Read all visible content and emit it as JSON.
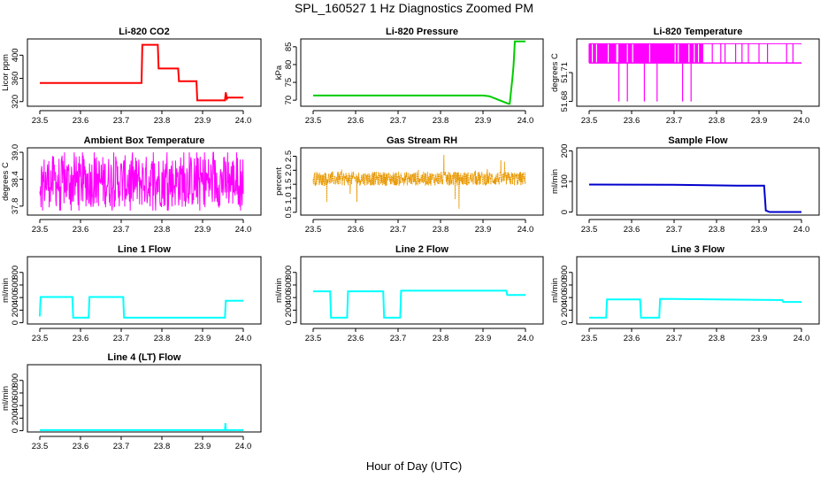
{
  "figure": {
    "title": "SPL_160527  1 Hz Diagnostics Zoomed PM",
    "xlabel": "Hour of Day (UTC)"
  },
  "chart_data": [
    {
      "id": "co2",
      "type": "line",
      "title": "Li-820 CO2",
      "ylabel": "Licor ppm",
      "color": "#ff0000",
      "xlim": [
        23.5,
        24.0
      ],
      "ylim": [
        312,
        428
      ],
      "xticks": [
        "23.5",
        "23.6",
        "23.7",
        "23.8",
        "23.9",
        "24.0"
      ],
      "xtick_values": [
        23.5,
        23.6,
        23.7,
        23.8,
        23.9,
        24.0
      ],
      "yticks": [
        "320",
        "360",
        "400"
      ],
      "ytick_values": [
        320,
        360,
        400
      ],
      "x": [
        23.5,
        23.75,
        23.752,
        23.79,
        23.792,
        23.84,
        23.842,
        23.885,
        23.887,
        23.955,
        23.957,
        23.96,
        23.962,
        24.0
      ],
      "y": [
        352,
        352,
        418,
        418,
        377,
        377,
        355,
        355,
        322,
        322,
        336,
        325,
        327,
        327
      ]
    },
    {
      "id": "pressure",
      "type": "line",
      "title": "Li-820 Pressure",
      "ylabel": "kPa",
      "color": "#00cc00",
      "xlim": [
        23.5,
        24.0
      ],
      "ylim": [
        68.3,
        87.2
      ],
      "xticks": [
        "23.5",
        "23.6",
        "23.7",
        "23.8",
        "23.9",
        "24.0"
      ],
      "xtick_values": [
        23.5,
        23.6,
        23.7,
        23.8,
        23.9,
        24.0
      ],
      "yticks": [
        "70",
        "75",
        "80",
        "85"
      ],
      "ytick_values": [
        70,
        75,
        80,
        85
      ],
      "x": [
        23.5,
        23.9,
        23.915,
        23.96,
        23.963,
        23.97,
        23.972,
        23.975,
        24.0
      ],
      "y": [
        71.3,
        71.3,
        71.1,
        69.0,
        69.0,
        77,
        80,
        86.5,
        86.5
      ]
    },
    {
      "id": "temperature",
      "type": "line",
      "title": "Li-820 Temperature",
      "ylabel": "degrees C",
      "color": "#ff00ff",
      "xlim": [
        23.5,
        24.0
      ],
      "ylim": [
        51.675,
        51.745
      ],
      "xticks": [
        "23.5",
        "23.6",
        "23.7",
        "23.8",
        "23.9",
        "24.0"
      ],
      "xtick_values": [
        23.5,
        23.6,
        23.7,
        23.8,
        23.9,
        24.0
      ],
      "yticks": [
        "51.68",
        "51.71"
      ],
      "ytick_values": [
        51.68,
        51.71
      ],
      "base": 51.72,
      "high": 51.74,
      "low": 51.68,
      "high_region_end": 23.77,
      "sparse_spikes": [
        23.79,
        23.81,
        23.82,
        23.845,
        23.86,
        23.875,
        23.9,
        23.92,
        23.965,
        23.98
      ],
      "dips": [
        23.57,
        23.59,
        23.63,
        23.66,
        23.72,
        23.74
      ]
    },
    {
      "id": "ambient",
      "type": "line",
      "title": "Ambient Box Temperature",
      "ylabel": "degrees C",
      "color": "#ff00ff",
      "xlim": [
        23.5,
        24.0
      ],
      "ylim": [
        37.6,
        39.1
      ],
      "xticks": [
        "23.5",
        "23.6",
        "23.7",
        "23.8",
        "23.9",
        "24.0"
      ],
      "xtick_values": [
        23.5,
        23.6,
        23.7,
        23.8,
        23.9,
        24.0
      ],
      "yticks": [
        "37.8",
        "38.4",
        "39.0"
      ],
      "ytick_values": [
        37.8,
        38.4,
        39.0
      ],
      "noise_min": 37.7,
      "noise_max": 39.0,
      "noise_center": 38.35
    },
    {
      "id": "rh",
      "type": "line",
      "title": "Gas Stream RH",
      "ylabel": "percent",
      "color": "#ffa500",
      "xlim": [
        23.5,
        24.0
      ],
      "ylim": [
        0.4,
        2.8
      ],
      "xticks": [
        "23.5",
        "23.6",
        "23.7",
        "23.8",
        "23.9",
        "24.0"
      ],
      "xtick_values": [
        23.5,
        23.6,
        23.7,
        23.8,
        23.9,
        24.0
      ],
      "yticks": [
        "0.5",
        "1.0",
        "1.5",
        "2.0",
        "2.5"
      ],
      "ytick_values": [
        0.5,
        1.0,
        1.5,
        2.0,
        2.5
      ],
      "noise_center": 1.7,
      "noise_band": [
        1.45,
        1.95
      ],
      "spike_min": 0.5,
      "spike_max": 2.6
    },
    {
      "id": "sample",
      "type": "line",
      "title": "Sample Flow",
      "ylabel": "ml/min",
      "color": "#0000cc",
      "xlim": [
        23.5,
        24.0
      ],
      "ylim": [
        -10,
        210
      ],
      "xticks": [
        "23.5",
        "23.6",
        "23.7",
        "23.8",
        "23.9",
        "24.0"
      ],
      "xtick_values": [
        23.5,
        23.6,
        23.7,
        23.8,
        23.9,
        24.0
      ],
      "yticks": [
        "0",
        "100",
        "200"
      ],
      "ytick_values": [
        0,
        100,
        200
      ],
      "x": [
        23.5,
        23.7,
        23.85,
        23.912,
        23.916,
        23.925,
        24.0
      ],
      "y": [
        90,
        89,
        86,
        86,
        5,
        0,
        0
      ]
    },
    {
      "id": "line1",
      "type": "line",
      "title": "Line 1 Flow",
      "ylabel": "ml/min",
      "color": "#00ffff",
      "xlim": [
        23.5,
        24.0
      ],
      "ylim": [
        -20,
        1050
      ],
      "xticks": [
        "23.5",
        "23.6",
        "23.7",
        "23.8",
        "23.9",
        "24.0"
      ],
      "xtick_values": [
        23.5,
        23.6,
        23.7,
        23.8,
        23.9,
        24.0
      ],
      "yticks": [
        "0",
        "200",
        "400",
        "600",
        "800"
      ],
      "ytick_values": [
        0,
        200,
        400,
        600,
        800
      ],
      "x": [
        23.5,
        23.502,
        23.58,
        23.582,
        23.62,
        23.622,
        23.705,
        23.707,
        23.955,
        23.957,
        24.0
      ],
      "y": [
        100,
        410,
        410,
        80,
        80,
        410,
        410,
        80,
        80,
        350,
        350
      ]
    },
    {
      "id": "line2",
      "type": "line",
      "title": "Line 2 Flow",
      "ylabel": "ml/min",
      "color": "#00ffff",
      "xlim": [
        23.5,
        24.0
      ],
      "ylim": [
        -20,
        1050
      ],
      "xticks": [
        "23.5",
        "23.6",
        "23.7",
        "23.8",
        "23.9",
        "24.0"
      ],
      "xtick_values": [
        23.5,
        23.6,
        23.7,
        23.8,
        23.9,
        24.0
      ],
      "yticks": [
        "0",
        "200",
        "400",
        "600",
        "800"
      ],
      "ytick_values": [
        0,
        200,
        400,
        600,
        800
      ],
      "x": [
        23.5,
        23.54,
        23.542,
        23.58,
        23.582,
        23.665,
        23.667,
        23.705,
        23.707,
        23.955,
        23.957,
        24.0
      ],
      "y": [
        500,
        500,
        80,
        80,
        500,
        500,
        80,
        80,
        510,
        510,
        440,
        440
      ]
    },
    {
      "id": "line3",
      "type": "line",
      "title": "Line 3 Flow",
      "ylabel": "ml/min",
      "color": "#00ffff",
      "xlim": [
        23.5,
        24.0
      ],
      "ylim": [
        -20,
        1050
      ],
      "xticks": [
        "23.5",
        "23.6",
        "23.7",
        "23.8",
        "23.9",
        "24.0"
      ],
      "xtick_values": [
        23.5,
        23.6,
        23.7,
        23.8,
        23.9,
        24.0
      ],
      "yticks": [
        "0",
        "200",
        "400",
        "600",
        "800"
      ],
      "ytick_values": [
        0,
        200,
        400,
        600,
        800
      ],
      "x": [
        23.5,
        23.502,
        23.54,
        23.542,
        23.62,
        23.622,
        23.665,
        23.667,
        23.955,
        23.957,
        24.0
      ],
      "y": [
        80,
        80,
        80,
        370,
        370,
        80,
        80,
        380,
        360,
        330,
        330
      ]
    },
    {
      "id": "line4",
      "type": "line",
      "title": "Line 4 (LT) Flow",
      "ylabel": "ml/min",
      "color": "#00ffff",
      "xlim": [
        23.5,
        24.0
      ],
      "ylim": [
        -20,
        1050
      ],
      "xticks": [
        "23.5",
        "23.6",
        "23.7",
        "23.8",
        "23.9",
        "24.0"
      ],
      "xtick_values": [
        23.5,
        23.6,
        23.7,
        23.8,
        23.9,
        24.0
      ],
      "yticks": [
        "0",
        "200",
        "400",
        "600",
        "800"
      ],
      "ytick_values": [
        0,
        200,
        400,
        600,
        800
      ],
      "x": [
        23.5,
        23.955,
        23.956,
        23.957,
        23.958,
        24.0
      ],
      "y": [
        10,
        10,
        120,
        10,
        10,
        10
      ]
    }
  ]
}
